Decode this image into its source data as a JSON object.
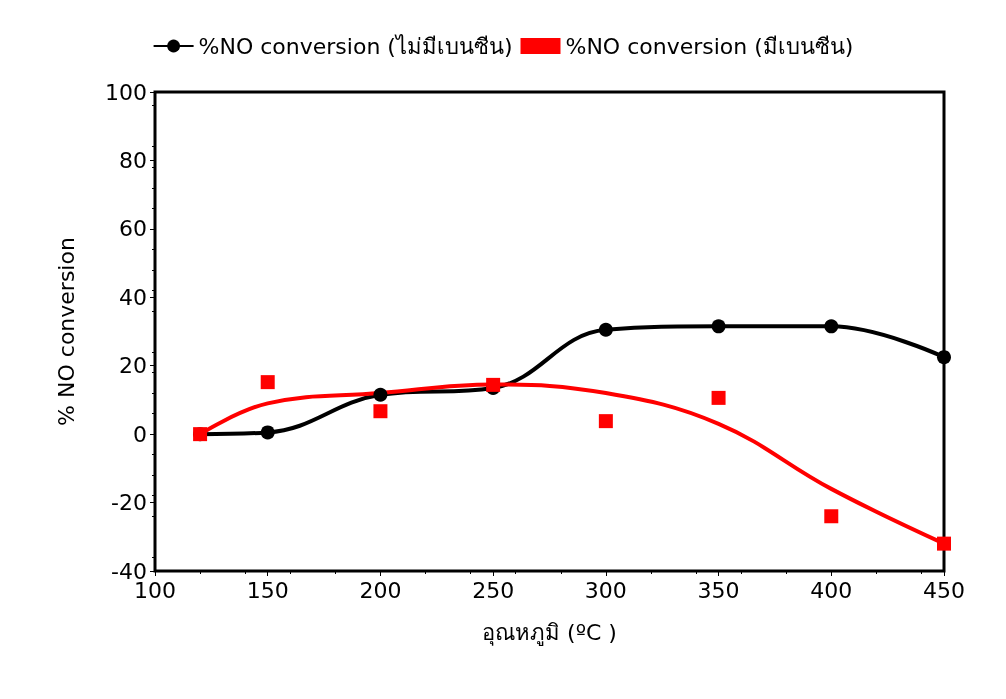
{
  "chart_data": {
    "type": "line",
    "xlabel": "อุณหภูมิ (ºC )",
    "ylabel": "% NO conversion",
    "xlim": [
      100,
      450
    ],
    "xticks": [
      100,
      150,
      200,
      250,
      300,
      350,
      400,
      450
    ],
    "ylim": [
      -40,
      100
    ],
    "yticks": [
      -40,
      -20,
      0,
      20,
      40,
      60,
      80,
      100
    ],
    "grid": false,
    "legend": "top",
    "series": [
      {
        "name": "%NO conversion (ไม่มีเบนซีน)",
        "type": "line",
        "marker": "circle",
        "color": "#000000",
        "x": [
          120,
          150,
          200,
          250,
          300,
          350,
          400,
          450
        ],
        "values": [
          0,
          0.5,
          11.5,
          13.5,
          30.5,
          31.5,
          31.5,
          22.5
        ]
      },
      {
        "name": "%NO conversion (มีเบนซีน)",
        "type": "scatter",
        "marker": "square",
        "color": "#ff0000",
        "x": [
          120,
          150,
          200,
          250,
          300,
          350,
          400,
          450
        ],
        "values": [
          0,
          15.2,
          6.7,
          14.4,
          3.8,
          10.6,
          -24,
          -32
        ]
      },
      {
        "type": "line",
        "marker": "none",
        "color": "#ff0000",
        "x": [
          120,
          150,
          200,
          250,
          300,
          350,
          400,
          450
        ],
        "values": [
          0,
          9,
          12,
          14.5,
          12,
          3,
          -16,
          -32
        ]
      }
    ]
  }
}
